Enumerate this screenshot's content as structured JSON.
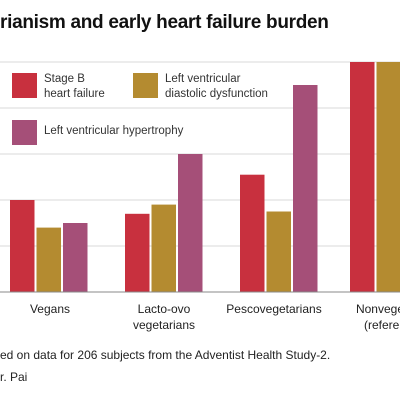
{
  "chart_data": {
    "type": "bar",
    "title": "rianism and early heart failure burden",
    "categories": [
      [
        "Vegans"
      ],
      [
        "Lacto-ovo",
        "vegetarians"
      ],
      [
        "Pescovegetarians"
      ],
      [
        "Nonvegeta",
        "(referen"
      ]
    ],
    "series": [
      {
        "name": "Stage B heart failure",
        "name_lines": [
          "Stage B",
          "heart failure"
        ],
        "color": "#c8303e",
        "values": [
          2.0,
          1.7,
          2.55,
          5.0
        ]
      },
      {
        "name": "Left ventricular diastolic dysfunction",
        "name_lines": [
          "Left ventricular",
          "diastolic dysfunction"
        ],
        "color": "#b48b30",
        "values": [
          1.4,
          1.9,
          1.75,
          5.0
        ]
      },
      {
        "name": "Left ventricular hypertrophy",
        "name_lines": [
          "Left ventricular hypertrophy"
        ],
        "color": "#a54f78",
        "values": [
          1.5,
          3.0,
          4.5,
          null
        ]
      }
    ],
    "ylim": [
      0,
      5
    ],
    "grid": true,
    "legend": "top-left"
  },
  "footnote": "ed on data for 206 subjects from the Adventist Health Study-2.",
  "credit": "r. Pai"
}
